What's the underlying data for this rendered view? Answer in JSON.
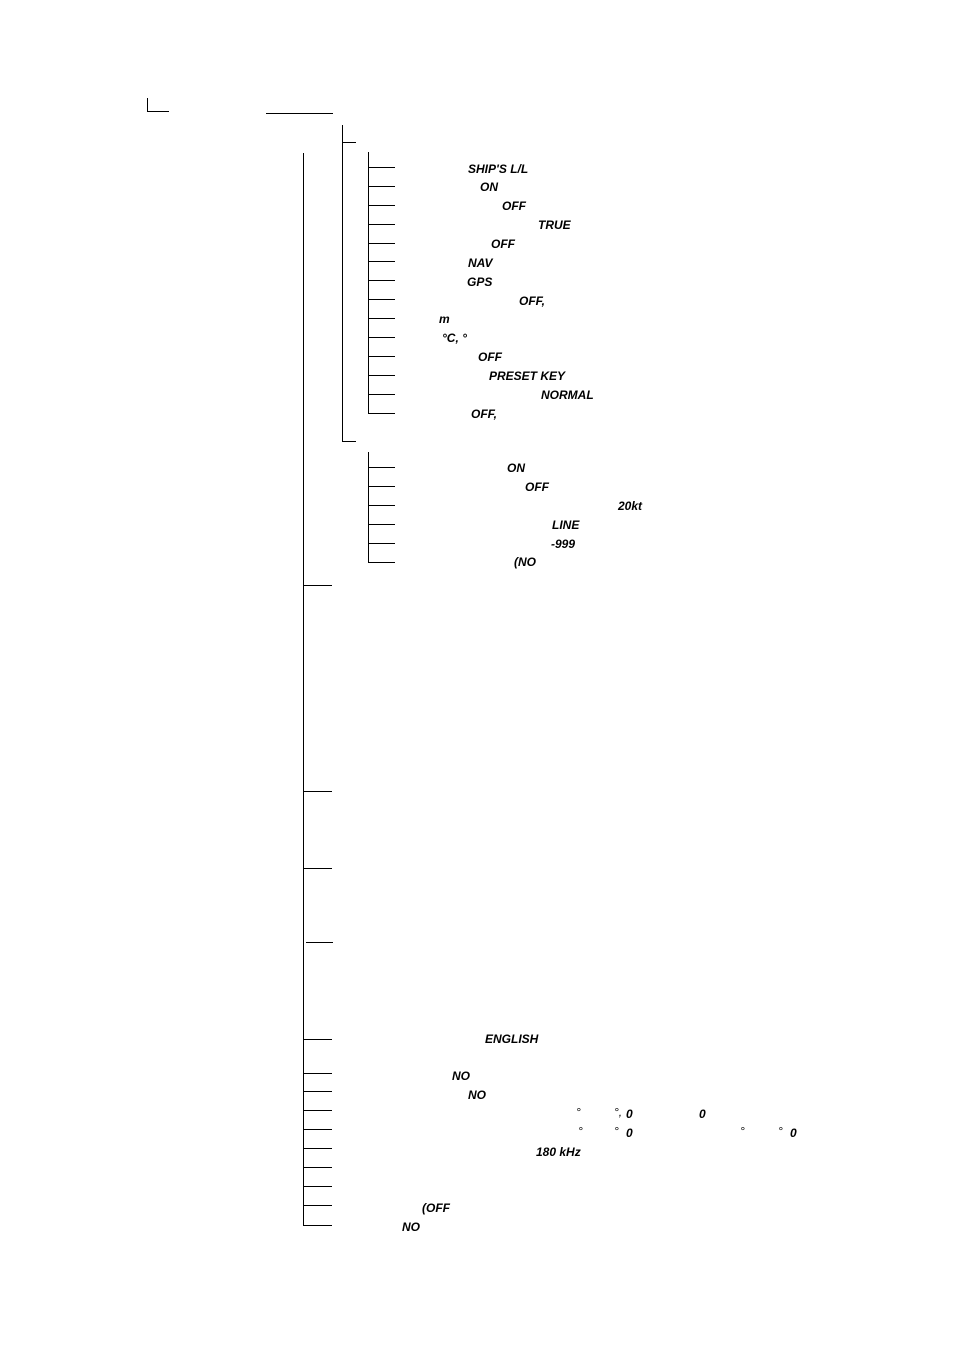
{
  "menu_tree": {
    "setup": {
      "items": [
        {
          "default": "SHIP'S L/L"
        },
        {
          "default": "ON"
        },
        {
          "default": "OFF"
        },
        {
          "default": "TRUE"
        },
        {
          "default": "OFF"
        },
        {
          "default": "NAV"
        },
        {
          "default": "GPS"
        },
        {
          "default": "OFF,"
        },
        {
          "default": "m"
        },
        {
          "default": "°C, °"
        },
        {
          "default": "OFF"
        },
        {
          "default": "PRESET KEY"
        },
        {
          "default": "NORMAL"
        },
        {
          "default": "OFF,"
        }
      ]
    },
    "display": {
      "items": [
        {
          "default": "ON"
        },
        {
          "default": "OFF"
        },
        {
          "default": "20kt"
        },
        {
          "default": "LINE"
        },
        {
          "default": "-999"
        },
        {
          "default": "(NO"
        }
      ]
    },
    "system": {
      "language": "ENGLISH",
      "item_no_1": "NO",
      "item_no_2": "NO",
      "offset_row_1": {
        "deg_a": "°",
        "deg_b": "°,",
        "value_a": "0",
        "value_b": "0"
      },
      "offset_row_2": {
        "deg_a": "°",
        "deg_b": "°",
        "value_a": "0",
        "deg_c": "°",
        "deg_d": "°",
        "value_b": "0"
      },
      "frequency": "180 kHz",
      "item_off": "(OFF",
      "item_no_3": "NO"
    }
  }
}
